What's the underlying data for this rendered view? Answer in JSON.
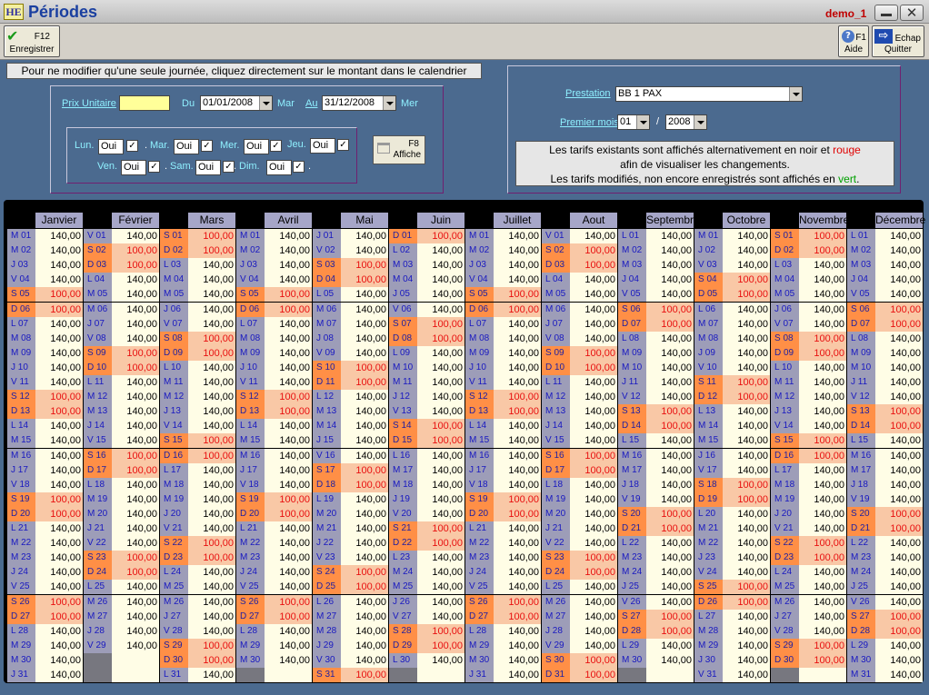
{
  "window": {
    "logo": "HE",
    "title": "Périodes",
    "user": "demo_1"
  },
  "toolbar": {
    "save": {
      "key": "F12",
      "label": "Enregistrer"
    },
    "help": {
      "key": "F1",
      "label": "Aide"
    },
    "quit": {
      "key": "Echap",
      "label": "Quitter"
    }
  },
  "hint": "Pour ne modifier qu'une seule journée, cliquez directement sur le montant dans le calendrier",
  "filters": {
    "prix_label": "Prix Unitaire",
    "prix_value": "",
    "du_label": "Du",
    "du_value": "01/01/2008",
    "du_day": "Mar",
    "au_label": "Au",
    "au_value": "31/12/2008",
    "au_day": "Mer",
    "days": [
      {
        "label": "Lun.",
        "value": "Oui"
      },
      {
        "label": "Mar.",
        "value": "Oui"
      },
      {
        "label": "Mer.",
        "value": "Oui"
      },
      {
        "label": "Jeu.",
        "value": "Oui"
      },
      {
        "label": "Ven.",
        "value": "Oui"
      },
      {
        "label": "Sam.",
        "value": "Oui"
      },
      {
        "label": "Dim.",
        "value": "Oui"
      }
    ],
    "affiche": {
      "key": "F8",
      "label": "Affiche"
    }
  },
  "prestation": {
    "label": "Prestation",
    "value": "BB 1 PAX",
    "premier_label": "Premier mois",
    "mois": "01",
    "sep": "/",
    "annee": "2008"
  },
  "info": {
    "line1_a": "Les tarifs existants sont affichés alternativement en noir et",
    "line1_b": "rouge",
    "line2": "afin de visualiser les changements.",
    "line3_a": "Les tarifs modifiés, non encore enregistrés sont affichés en",
    "line3_b": "vert",
    "line3_c": "."
  },
  "colors": {
    "weekday_price": "#000000",
    "weekend_price": "#e81010",
    "weekday_bg": "#fffde6",
    "weekend_bg": "#f9c8a6",
    "weekend_day_bg": "#ff8f46",
    "weekday_day_bg": "#9d9db8",
    "modified_price": "#00a000"
  },
  "calendar": {
    "weekday_price": "140,00",
    "weekend_price": "100,00",
    "months": [
      {
        "name": "Janvier",
        "first_day": "M",
        "days": [
          "M",
          "M",
          "J",
          "V",
          "S",
          "D",
          "L",
          "M",
          "M",
          "J",
          "V",
          "S",
          "D",
          "L",
          "M",
          "M",
          "J",
          "V",
          "S",
          "D",
          "L",
          "M",
          "M",
          "J",
          "V",
          "S",
          "D",
          "L",
          "M",
          "M",
          "J"
        ]
      },
      {
        "name": "Février",
        "days": [
          "V",
          "S",
          "D",
          "L",
          "M",
          "M",
          "J",
          "V",
          "S",
          "D",
          "L",
          "M",
          "M",
          "J",
          "V",
          "S",
          "D",
          "L",
          "M",
          "M",
          "J",
          "V",
          "S",
          "D",
          "L",
          "M",
          "M",
          "J",
          "V"
        ]
      },
      {
        "name": "Mars",
        "days": [
          "S",
          "D",
          "L",
          "M",
          "M",
          "J",
          "V",
          "S",
          "D",
          "L",
          "M",
          "M",
          "J",
          "V",
          "S",
          "D",
          "L",
          "M",
          "M",
          "J",
          "V",
          "S",
          "D",
          "L",
          "M",
          "M",
          "J",
          "V",
          "S",
          "D",
          "L"
        ]
      },
      {
        "name": "Avril",
        "days": [
          "M",
          "M",
          "J",
          "V",
          "S",
          "D",
          "L",
          "M",
          "M",
          "J",
          "V",
          "S",
          "D",
          "L",
          "M",
          "M",
          "J",
          "V",
          "S",
          "D",
          "L",
          "M",
          "M",
          "J",
          "V",
          "S",
          "D",
          "L",
          "M",
          "M"
        ]
      },
      {
        "name": "Mai",
        "days": [
          "J",
          "V",
          "S",
          "D",
          "L",
          "M",
          "M",
          "J",
          "V",
          "S",
          "D",
          "L",
          "M",
          "M",
          "J",
          "V",
          "S",
          "D",
          "L",
          "M",
          "M",
          "J",
          "V",
          "S",
          "D",
          "L",
          "M",
          "M",
          "J",
          "V",
          "S"
        ]
      },
      {
        "name": "Juin",
        "days": [
          "D",
          "L",
          "M",
          "M",
          "J",
          "V",
          "S",
          "D",
          "L",
          "M",
          "M",
          "J",
          "V",
          "S",
          "D",
          "L",
          "M",
          "M",
          "J",
          "V",
          "S",
          "D",
          "L",
          "M",
          "M",
          "J",
          "V",
          "S",
          "D",
          "L"
        ]
      },
      {
        "name": "Juillet",
        "days": [
          "M",
          "M",
          "J",
          "V",
          "S",
          "D",
          "L",
          "M",
          "M",
          "J",
          "V",
          "S",
          "D",
          "L",
          "M",
          "M",
          "J",
          "V",
          "S",
          "D",
          "L",
          "M",
          "M",
          "J",
          "V",
          "S",
          "D",
          "L",
          "M",
          "M",
          "J"
        ]
      },
      {
        "name": "Aout",
        "days": [
          "V",
          "S",
          "D",
          "L",
          "M",
          "M",
          "J",
          "V",
          "S",
          "D",
          "L",
          "M",
          "M",
          "J",
          "V",
          "S",
          "D",
          "L",
          "M",
          "M",
          "J",
          "V",
          "S",
          "D",
          "L",
          "M",
          "M",
          "J",
          "V",
          "S",
          "D"
        ]
      },
      {
        "name": "Septembre",
        "days": [
          "L",
          "M",
          "M",
          "J",
          "V",
          "S",
          "D",
          "L",
          "M",
          "M",
          "J",
          "V",
          "S",
          "D",
          "L",
          "M",
          "M",
          "J",
          "V",
          "S",
          "D",
          "L",
          "M",
          "M",
          "J",
          "V",
          "S",
          "D",
          "L",
          "M"
        ]
      },
      {
        "name": "Octobre",
        "days": [
          "M",
          "J",
          "V",
          "S",
          "D",
          "L",
          "M",
          "M",
          "J",
          "V",
          "S",
          "D",
          "L",
          "M",
          "M",
          "J",
          "V",
          "S",
          "D",
          "L",
          "M",
          "M",
          "J",
          "V",
          "S",
          "D",
          "L",
          "M",
          "M",
          "J",
          "V"
        ]
      },
      {
        "name": "Novembre",
        "days": [
          "S",
          "D",
          "L",
          "M",
          "M",
          "J",
          "V",
          "S",
          "D",
          "L",
          "M",
          "M",
          "J",
          "V",
          "S",
          "D",
          "L",
          "M",
          "M",
          "J",
          "V",
          "S",
          "D",
          "L",
          "M",
          "M",
          "J",
          "V",
          "S",
          "D"
        ]
      },
      {
        "name": "Décembre",
        "days": [
          "L",
          "M",
          "M",
          "J",
          "V",
          "S",
          "D",
          "L",
          "M",
          "M",
          "J",
          "V",
          "S",
          "D",
          "L",
          "M",
          "M",
          "J",
          "V",
          "S",
          "D",
          "L",
          "M",
          "M",
          "J",
          "V",
          "S",
          "D",
          "L",
          "M",
          "M"
        ]
      }
    ]
  }
}
